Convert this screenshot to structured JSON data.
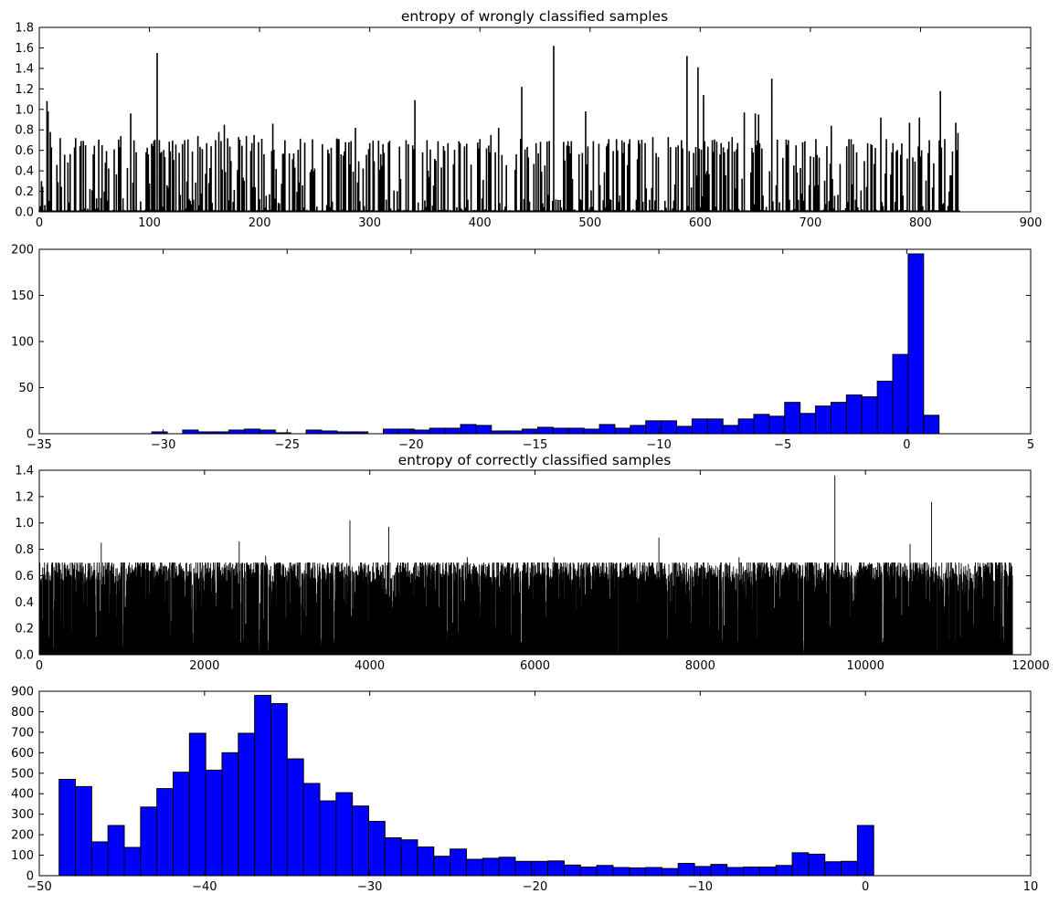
{
  "chart_data": [
    {
      "id": "wrong-entropy",
      "type": "bar",
      "title": "entropy of wrongly classified samples",
      "xlabel": "",
      "ylabel": "",
      "xlim": [
        0,
        900
      ],
      "ylim": [
        0.0,
        1.8
      ],
      "xticks": [
        0,
        100,
        200,
        300,
        400,
        500,
        600,
        700,
        800,
        900
      ],
      "yticks": [
        0.0,
        0.2,
        0.4,
        0.6,
        0.8,
        1.0,
        1.2,
        1.4,
        1.6,
        1.8
      ],
      "ytick_decimals": 1,
      "grid": false,
      "bar_color": "#000000",
      "n_samples": 836,
      "peaks": [
        {
          "x": 7,
          "y": 1.08
        },
        {
          "x": 8,
          "y": 0.98
        },
        {
          "x": 10,
          "y": 0.78
        },
        {
          "x": 19,
          "y": 0.72
        },
        {
          "x": 33,
          "y": 0.72
        },
        {
          "x": 42,
          "y": 0.65
        },
        {
          "x": 57,
          "y": 0.65
        },
        {
          "x": 68,
          "y": 0.61
        },
        {
          "x": 74,
          "y": 0.74
        },
        {
          "x": 83,
          "y": 0.96
        },
        {
          "x": 107,
          "y": 1.55
        },
        {
          "x": 109,
          "y": 0.7
        },
        {
          "x": 132,
          "y": 0.7
        },
        {
          "x": 144,
          "y": 0.74
        },
        {
          "x": 152,
          "y": 0.67
        },
        {
          "x": 160,
          "y": 0.7
        },
        {
          "x": 163,
          "y": 0.78
        },
        {
          "x": 168,
          "y": 0.85
        },
        {
          "x": 181,
          "y": 0.73
        },
        {
          "x": 188,
          "y": 0.74
        },
        {
          "x": 195,
          "y": 0.75
        },
        {
          "x": 212,
          "y": 0.86
        },
        {
          "x": 223,
          "y": 0.7
        },
        {
          "x": 257,
          "y": 0.66
        },
        {
          "x": 271,
          "y": 0.71
        },
        {
          "x": 287,
          "y": 0.82
        },
        {
          "x": 300,
          "y": 0.67
        },
        {
          "x": 312,
          "y": 0.66
        },
        {
          "x": 333,
          "y": 0.7
        },
        {
          "x": 341,
          "y": 1.09
        },
        {
          "x": 352,
          "y": 0.7
        },
        {
          "x": 362,
          "y": 0.69
        },
        {
          "x": 371,
          "y": 0.67
        },
        {
          "x": 382,
          "y": 0.67
        },
        {
          "x": 400,
          "y": 0.71
        },
        {
          "x": 410,
          "y": 0.75
        },
        {
          "x": 417,
          "y": 0.82
        },
        {
          "x": 438,
          "y": 1.22
        },
        {
          "x": 451,
          "y": 0.67
        },
        {
          "x": 467,
          "y": 1.62
        },
        {
          "x": 483,
          "y": 0.69
        },
        {
          "x": 496,
          "y": 0.98
        },
        {
          "x": 503,
          "y": 0.69
        },
        {
          "x": 517,
          "y": 0.71
        },
        {
          "x": 524,
          "y": 0.71
        },
        {
          "x": 544,
          "y": 0.7
        },
        {
          "x": 557,
          "y": 0.73
        },
        {
          "x": 571,
          "y": 0.73
        },
        {
          "x": 583,
          "y": 0.7
        },
        {
          "x": 588,
          "y": 1.52
        },
        {
          "x": 598,
          "y": 1.41
        },
        {
          "x": 603,
          "y": 1.14
        },
        {
          "x": 611,
          "y": 0.7
        },
        {
          "x": 629,
          "y": 0.73
        },
        {
          "x": 640,
          "y": 0.97
        },
        {
          "x": 650,
          "y": 0.96
        },
        {
          "x": 653,
          "y": 0.95
        },
        {
          "x": 665,
          "y": 1.3
        },
        {
          "x": 680,
          "y": 0.7
        },
        {
          "x": 693,
          "y": 0.68
        },
        {
          "x": 705,
          "y": 0.71
        },
        {
          "x": 719,
          "y": 0.84
        },
        {
          "x": 735,
          "y": 0.71
        },
        {
          "x": 752,
          "y": 0.67
        },
        {
          "x": 764,
          "y": 0.92
        },
        {
          "x": 775,
          "y": 0.67
        },
        {
          "x": 790,
          "y": 0.87
        },
        {
          "x": 799,
          "y": 0.92
        },
        {
          "x": 808,
          "y": 0.7
        },
        {
          "x": 818,
          "y": 1.18
        },
        {
          "x": 822,
          "y": 0.71
        },
        {
          "x": 832,
          "y": 0.87
        },
        {
          "x": 834,
          "y": 0.77
        }
      ]
    },
    {
      "id": "wrong-histogram",
      "type": "bar",
      "title": "",
      "xlabel": "",
      "ylabel": "",
      "xlim": [
        -35,
        5
      ],
      "ylim": [
        0,
        200
      ],
      "xticks": [
        -35,
        -30,
        -25,
        -20,
        -15,
        -10,
        -5,
        0,
        5
      ],
      "yticks": [
        0,
        50,
        100,
        150,
        200
      ],
      "ytick_decimals": 0,
      "grid": false,
      "bar_color": "#0000ff",
      "bin_start": -30.46,
      "bin_width": 0.6228,
      "values": [
        2,
        0,
        4,
        2,
        2,
        4,
        5,
        4,
        1,
        0,
        4,
        3,
        2,
        2,
        0,
        5,
        5,
        4,
        6,
        6,
        10,
        9,
        3,
        3,
        5,
        7,
        6,
        6,
        5,
        10,
        6,
        9,
        14,
        14,
        8,
        16,
        16,
        9,
        16,
        21,
        19,
        34,
        22,
        30,
        34,
        42,
        40,
        57,
        86,
        195,
        20
      ]
    },
    {
      "id": "correct-entropy",
      "type": "bar",
      "title": "entropy of correctly classified samples",
      "xlabel": "",
      "ylabel": "",
      "xlim": [
        0,
        12000
      ],
      "ylim": [
        0.0,
        1.4
      ],
      "xticks": [
        0,
        2000,
        4000,
        6000,
        8000,
        10000,
        12000
      ],
      "yticks": [
        0.0,
        0.2,
        0.4,
        0.6,
        0.8,
        1.0,
        1.2,
        1.4
      ],
      "ytick_decimals": 1,
      "grid": false,
      "bar_color": "#000000",
      "n_samples": 11780,
      "peaks": [
        {
          "x": 750,
          "y": 0.85
        },
        {
          "x": 2420,
          "y": 0.86
        },
        {
          "x": 3760,
          "y": 1.02
        },
        {
          "x": 4230,
          "y": 0.97
        },
        {
          "x": 7500,
          "y": 0.89
        },
        {
          "x": 9630,
          "y": 1.36
        },
        {
          "x": 10540,
          "y": 0.84
        },
        {
          "x": 10800,
          "y": 1.16
        },
        {
          "x": 6230,
          "y": 0.74
        },
        {
          "x": 5180,
          "y": 0.74
        },
        {
          "x": 8470,
          "y": 0.74
        },
        {
          "x": 2740,
          "y": 0.75
        },
        {
          "x": 10050,
          "y": 0.7
        },
        {
          "x": 11700,
          "y": 0.68
        },
        {
          "x": 11760,
          "y": 0.68
        }
      ]
    },
    {
      "id": "correct-histogram",
      "type": "bar",
      "title": "",
      "xlabel": "",
      "ylabel": "",
      "xlim": [
        -50,
        10
      ],
      "ylim": [
        0,
        900
      ],
      "xticks": [
        -50,
        -40,
        -30,
        -20,
        -10,
        0,
        10
      ],
      "yticks": [
        0,
        100,
        200,
        300,
        400,
        500,
        600,
        700,
        800,
        900
      ],
      "ytick_decimals": 0,
      "grid": false,
      "bar_color": "#0000ff",
      "bin_start": -48.8,
      "bin_width": 0.986,
      "values": [
        470,
        435,
        165,
        245,
        138,
        335,
        425,
        505,
        695,
        515,
        600,
        695,
        880,
        840,
        570,
        450,
        365,
        405,
        340,
        265,
        185,
        175,
        140,
        95,
        130,
        80,
        85,
        90,
        70,
        70,
        72,
        52,
        42,
        50,
        40,
        38,
        40,
        35,
        60,
        45,
        55,
        40,
        42,
        42,
        50,
        112,
        105,
        68,
        70,
        245
      ]
    }
  ]
}
